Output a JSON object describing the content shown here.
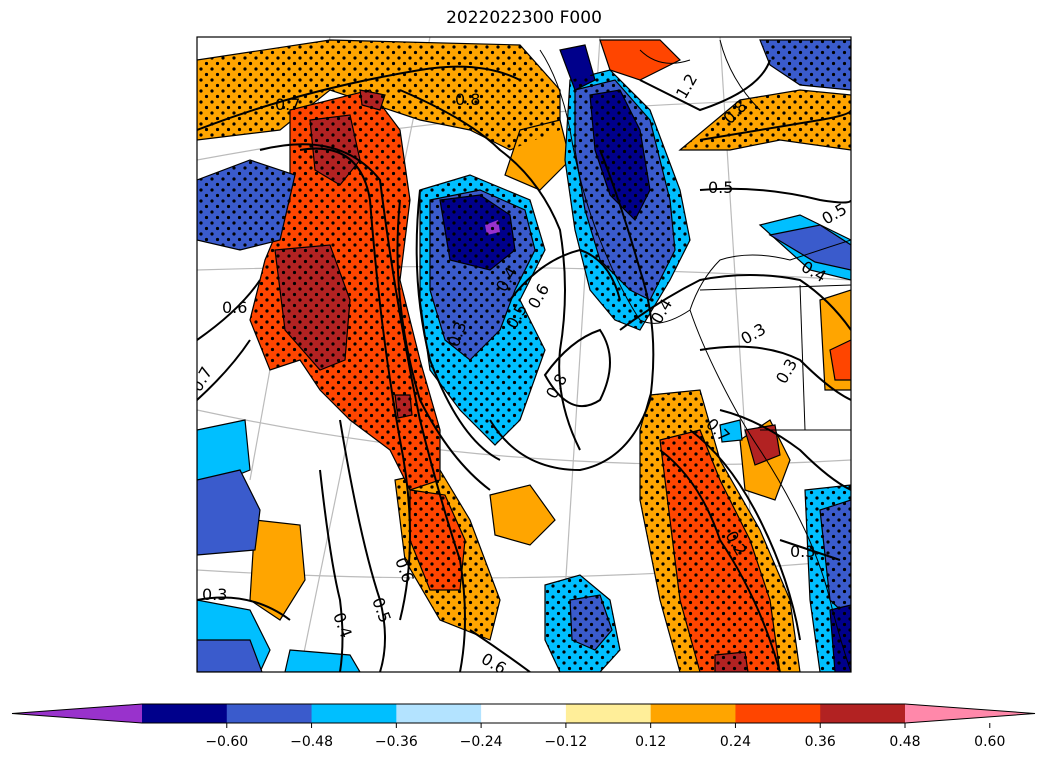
{
  "title": "2022022300 F000",
  "contour_labels": [
    {
      "text": "0.7"
    },
    {
      "text": "0.8"
    },
    {
      "text": "1.2"
    },
    {
      "text": "0.8"
    },
    {
      "text": "0.5"
    },
    {
      "text": "0.5"
    },
    {
      "text": "0.6"
    },
    {
      "text": "0.7"
    },
    {
      "text": "0.4"
    },
    {
      "text": "0.3"
    },
    {
      "text": "0.5"
    },
    {
      "text": "0.6"
    },
    {
      "text": "0.8"
    },
    {
      "text": "0.4"
    },
    {
      "text": "0.3"
    },
    {
      "text": "0.4"
    },
    {
      "text": "0.7"
    },
    {
      "text": "0.3"
    },
    {
      "text": "0.6"
    },
    {
      "text": "0.5"
    },
    {
      "text": "0.4"
    },
    {
      "text": "0.3"
    },
    {
      "text": "0.6"
    },
    {
      "text": "0.2"
    },
    {
      "text": "0.3"
    }
  ],
  "colorbar": {
    "colors": [
      "#9932cc",
      "#00008b",
      "#3a5bcc",
      "#00bfff",
      "#b3e3ff",
      "#ffffff",
      "#ffee99",
      "#ffa500",
      "#ff4500",
      "#b22222",
      "#ff88aa"
    ],
    "ticks": [
      "−0.60",
      "−0.48",
      "−0.36",
      "−0.24",
      "−0.12",
      "0.12",
      "0.24",
      "0.36",
      "0.48",
      "0.60"
    ]
  }
}
